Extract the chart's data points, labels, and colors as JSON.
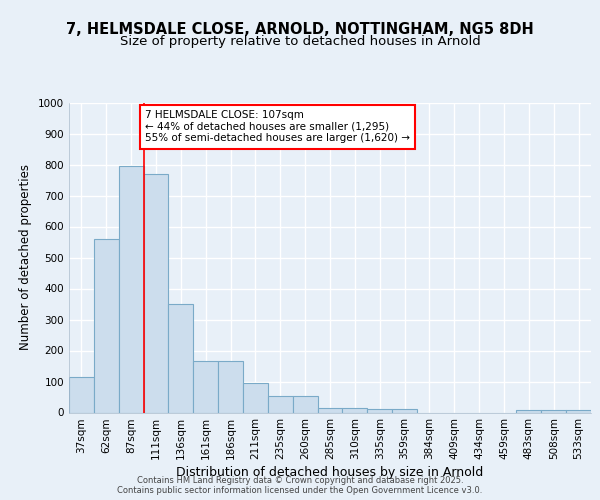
{
  "title1": "7, HELMSDALE CLOSE, ARNOLD, NOTTINGHAM, NG5 8DH",
  "title2": "Size of property relative to detached houses in Arnold",
  "xlabel": "Distribution of detached houses by size in Arnold",
  "ylabel": "Number of detached properties",
  "categories": [
    "37sqm",
    "62sqm",
    "87sqm",
    "111sqm",
    "136sqm",
    "161sqm",
    "186sqm",
    "211sqm",
    "235sqm",
    "260sqm",
    "285sqm",
    "310sqm",
    "335sqm",
    "359sqm",
    "384sqm",
    "409sqm",
    "434sqm",
    "459sqm",
    "483sqm",
    "508sqm",
    "533sqm"
  ],
  "values": [
    115,
    560,
    795,
    770,
    350,
    165,
    165,
    95,
    53,
    53,
    15,
    15,
    10,
    10,
    0,
    0,
    0,
    0,
    7,
    7,
    7
  ],
  "bar_color": "#ccdded",
  "bar_edge_color": "#7aaac8",
  "red_line_index": 3,
  "ylim": [
    0,
    1000
  ],
  "yticks": [
    0,
    100,
    200,
    300,
    400,
    500,
    600,
    700,
    800,
    900,
    1000
  ],
  "annotation_text": "7 HELMSDALE CLOSE: 107sqm\n← 44% of detached houses are smaller (1,295)\n55% of semi-detached houses are larger (1,620) →",
  "footer_line1": "Contains HM Land Registry data © Crown copyright and database right 2025.",
  "footer_line2": "Contains public sector information licensed under the Open Government Licence v3.0.",
  "background_color": "#e8f0f8",
  "grid_color": "#ffffff",
  "title1_fontsize": 10.5,
  "title2_fontsize": 9.5,
  "ylabel_fontsize": 8.5,
  "xlabel_fontsize": 9,
  "tick_fontsize": 7.5,
  "ann_fontsize": 7.5,
  "footer_fontsize": 6
}
